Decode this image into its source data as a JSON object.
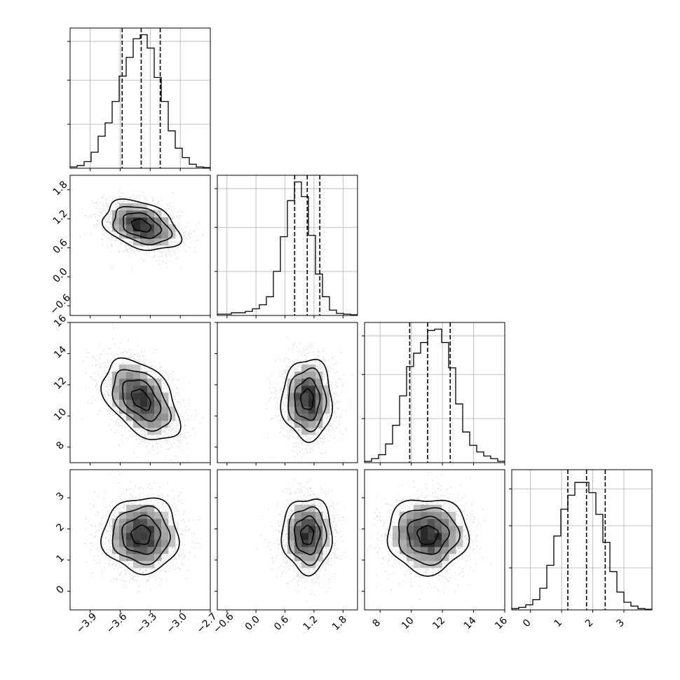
{
  "chart_data": {
    "type": "corner",
    "params": [
      {
        "range": [
          -4.1,
          -2.7
        ],
        "ticks": [
          "−3.9",
          "−3.6",
          "−3.3",
          "−3.0",
          "−2.7"
        ],
        "tick_values": [
          -3.9,
          -3.6,
          -3.3,
          -3.0,
          -2.7
        ],
        "quantiles": [
          -3.58,
          -3.39,
          -3.2
        ],
        "ymax": 1.05,
        "hist": [
          0.01,
          0.02,
          0.05,
          0.12,
          0.24,
          0.34,
          0.5,
          0.69,
          0.83,
          0.97,
          1.0,
          0.9,
          0.68,
          0.5,
          0.28,
          0.15,
          0.08,
          0.03,
          0.01,
          0.005
        ]
      },
      {
        "range": [
          -0.8,
          2.1
        ],
        "ticks": [
          "−0.6",
          "0.0",
          "0.6",
          "1.2",
          "1.8"
        ],
        "tick_values": [
          -0.6,
          0.0,
          0.6,
          1.2,
          1.8
        ],
        "quantiles": [
          0.8,
          1.06,
          1.32
        ],
        "ymax": 1.05,
        "hist": [
          0.01,
          0.01,
          0.02,
          0.02,
          0.03,
          0.05,
          0.08,
          0.14,
          0.33,
          0.59,
          0.86,
          1.0,
          0.89,
          0.6,
          0.31,
          0.14,
          0.04,
          0.015,
          0.01,
          0.005
        ]
      },
      {
        "range": [
          7.0,
          16.0
        ],
        "ticks": [
          "8",
          "10",
          "12",
          "14",
          "16"
        ],
        "tick_values": [
          8,
          10,
          12,
          14,
          16
        ],
        "quantiles": [
          9.9,
          11.05,
          12.5
        ],
        "ymax": 1.05,
        "hist": [
          0.01,
          0.03,
          0.06,
          0.14,
          0.28,
          0.5,
          0.72,
          0.82,
          0.9,
          0.99,
          1.0,
          0.9,
          0.71,
          0.44,
          0.23,
          0.13,
          0.08,
          0.05,
          0.03,
          0.01
        ]
      },
      {
        "range": [
          -0.6,
          3.9
        ],
        "ticks": [
          "0",
          "1",
          "2",
          "3"
        ],
        "tick_values": [
          0,
          1,
          2,
          3
        ],
        "quantiles": [
          1.2,
          1.8,
          2.4
        ],
        "ymax": 1.1,
        "hist": [
          0.01,
          0.02,
          0.04,
          0.08,
          0.17,
          0.35,
          0.58,
          0.79,
          0.9,
          1.0,
          1.0,
          0.92,
          0.75,
          0.53,
          0.3,
          0.14,
          0.06,
          0.03,
          0.01,
          0.005
        ]
      }
    ],
    "correlations": [
      [
        1.0,
        -0.35,
        -0.45,
        0.0
      ],
      [
        -0.35,
        1.0,
        0.0,
        0.0
      ],
      [
        -0.45,
        0.0,
        1.0,
        0.0
      ],
      [
        0.0,
        0.0,
        0.0,
        1.0
      ]
    ],
    "contour_levels_sigma": [
      0.5,
      1.0,
      1.5,
      2.0
    ],
    "grid": true
  }
}
